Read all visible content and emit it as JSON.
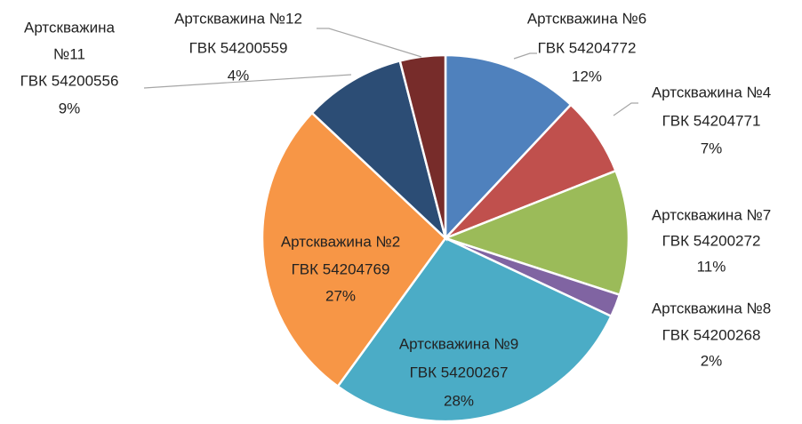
{
  "chart_data": {
    "type": "pie",
    "categories": [
      [
        "Артскважина №6",
        "ГВК 54204772"
      ],
      [
        "Артскважина №4",
        "ГВК 54204771"
      ],
      [
        "Артскважина №7",
        "ГВК 54200272"
      ],
      [
        "Артскважина №8",
        "ГВК 54200268"
      ],
      [
        "Артскважина №9",
        "ГВК 54200267"
      ],
      [
        "Артскважина №2",
        "ГВК 54204769"
      ],
      [
        "Артскважина",
        "№11",
        "ГВК 54200556"
      ],
      [
        "Артскважина №12",
        "ГВК 54200559"
      ]
    ],
    "values": [
      12,
      7,
      11,
      2,
      28,
      27,
      9,
      4
    ],
    "value_labels": [
      "12%",
      "7%",
      "11%",
      "2%",
      "28%",
      "27%",
      "9%",
      "4%"
    ],
    "colors": [
      "#4f81bd",
      "#c0504d",
      "#9bbb59",
      "#8064a2",
      "#4bacc6",
      "#f79646",
      "#2c4d75",
      "#772c2a"
    ]
  }
}
